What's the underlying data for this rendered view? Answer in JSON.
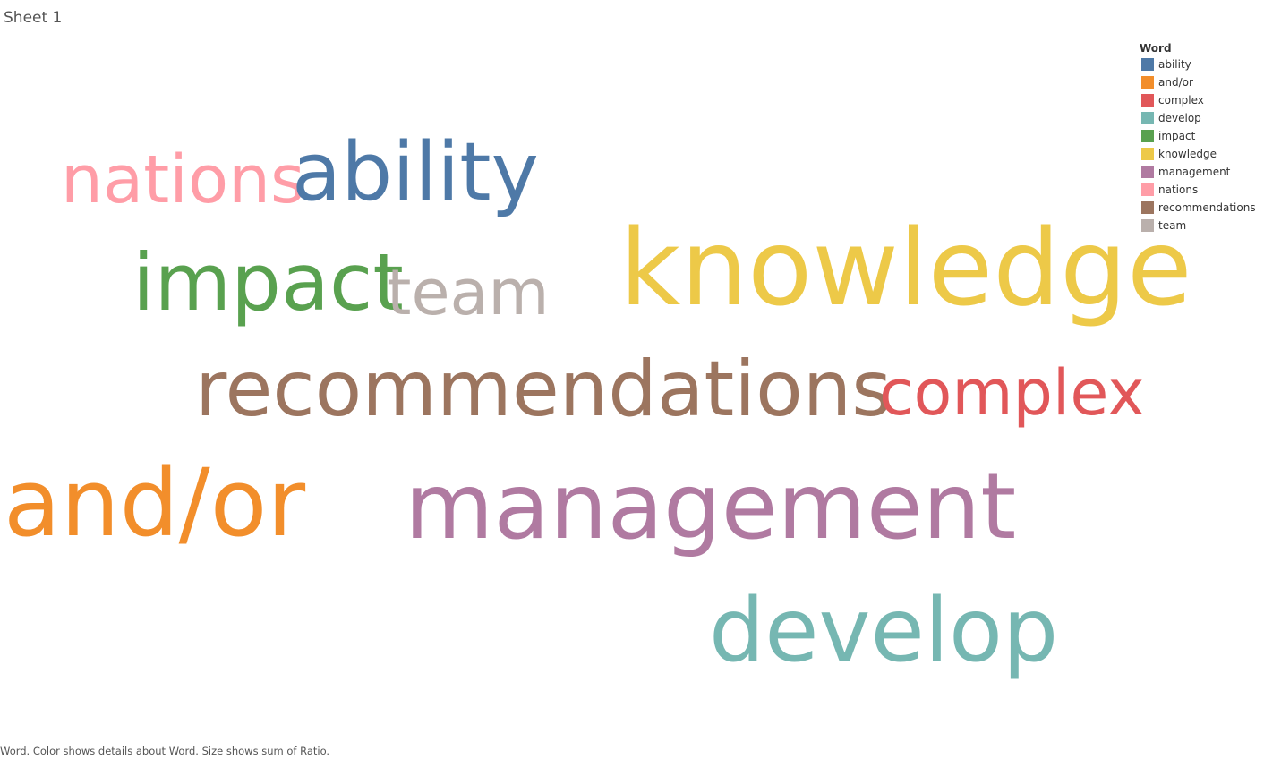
{
  "sheet": {
    "title": "Sheet 1"
  },
  "caption": "Word.  Color shows details about Word.  Size shows sum of Ratio.",
  "legend": {
    "title": "Word"
  },
  "chart_data": {
    "type": "wordcloud",
    "color_field": "Word",
    "size_field": "sum of Ratio",
    "words": [
      {
        "text": "ability",
        "color": "#4e79a7"
      },
      {
        "text": "and/or",
        "color": "#f28e2b"
      },
      {
        "text": "complex",
        "color": "#e15759"
      },
      {
        "text": "develop",
        "color": "#76b7b2"
      },
      {
        "text": "impact",
        "color": "#59a14f"
      },
      {
        "text": "knowledge",
        "color": "#edc948"
      },
      {
        "text": "management",
        "color": "#b07aa1"
      },
      {
        "text": "nations",
        "color": "#ff9da7"
      },
      {
        "text": "recommendations",
        "color": "#9c755f"
      },
      {
        "text": "team",
        "color": "#bab0ac"
      }
    ]
  }
}
